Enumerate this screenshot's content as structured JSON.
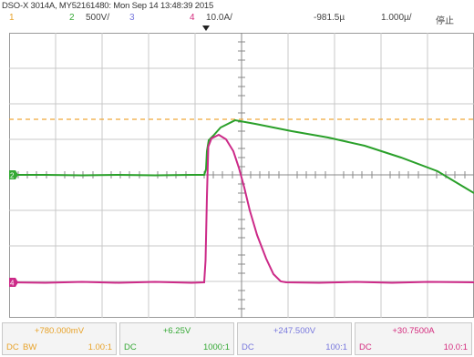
{
  "title": "DSO-X 3014A, MY52161480: Mon Sep 14 13:48:39 2015",
  "channels": [
    {
      "num": "1",
      "scale": "",
      "color": "#e8a32a"
    },
    {
      "num": "2",
      "scale": "500V/",
      "color": "#35a835"
    },
    {
      "num": "3",
      "scale": "",
      "color": "#7777dd"
    },
    {
      "num": "4",
      "scale": "10.0A/",
      "color": "#d42c7e"
    }
  ],
  "timebase": {
    "delay": "-981.5µ",
    "scale": "1.000µ/",
    "run_state": "停止"
  },
  "ground_markers": {
    "ch2": "2",
    "ch4": "4"
  },
  "footer": [
    {
      "value": "+780.000mV",
      "coupling": "DC",
      "extra": "BW",
      "ratio": "1.00:1",
      "color": "#e8a32a"
    },
    {
      "value": "+6.25V",
      "coupling": "DC",
      "extra": "",
      "ratio": "1000:1",
      "color": "#35a835"
    },
    {
      "value": "+247.500V",
      "coupling": "DC",
      "extra": "",
      "ratio": "100:1",
      "color": "#7777dd"
    },
    {
      "value": "+30.7500A",
      "coupling": "DC",
      "extra": "",
      "ratio": "10.0:1",
      "color": "#d42c7e"
    }
  ]
}
